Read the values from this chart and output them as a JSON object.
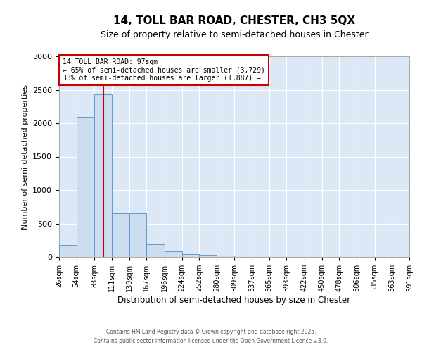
{
  "title": "14, TOLL BAR ROAD, CHESTER, CH3 5QX",
  "subtitle": "Size of property relative to semi-detached houses in Chester",
  "xlabel": "Distribution of semi-detached houses by size in Chester",
  "ylabel": "Number of semi-detached properties",
  "bar_values": [
    175,
    2100,
    2430,
    650,
    650,
    190,
    80,
    40,
    35,
    25,
    0,
    0,
    0,
    0,
    0,
    0,
    0,
    0,
    0,
    0
  ],
  "bin_edges": [
    26,
    54,
    83,
    111,
    139,
    167,
    196,
    224,
    252,
    280,
    309,
    337,
    365,
    393,
    422,
    450,
    478,
    506,
    535,
    563,
    591
  ],
  "bar_color": "#ccddf0",
  "bar_edge_color": "#6699cc",
  "property_size": 97,
  "red_line_color": "#cc0000",
  "ylim": [
    0,
    3000
  ],
  "annotation_title": "14 TOLL BAR ROAD: 97sqm",
  "annotation_line1": "← 65% of semi-detached houses are smaller (3,729)",
  "annotation_line2": "33% of semi-detached houses are larger (1,887) →",
  "annotation_box_color": "#ffffff",
  "annotation_box_edge": "#cc0000",
  "plot_bg_color": "#dce8f5",
  "fig_bg_color": "#ffffff",
  "grid_color": "#ffffff",
  "footer1": "Contains HM Land Registry data © Crown copyright and database right 2025.",
  "footer2": "Contains public sector information licensed under the Open Government Licence v.3.0."
}
